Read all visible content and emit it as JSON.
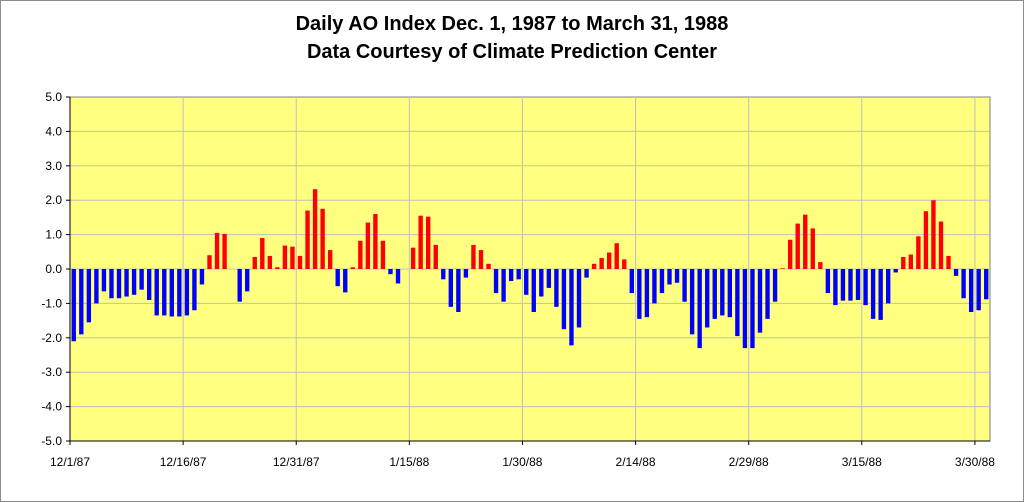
{
  "chart_data": {
    "type": "bar",
    "title": "Daily AO Index Dec. 1, 1987 to March 31, 1988",
    "subtitle": "Data Courtesy of Climate Prediction Center",
    "xlabel": "",
    "ylabel": "",
    "ylim": [
      -5.0,
      5.0
    ],
    "y_ticks": [
      "5.0",
      "4.0",
      "3.0",
      "2.0",
      "1.0",
      "0.0",
      "-1.0",
      "-2.0",
      "-3.0",
      "-4.0",
      "-5.0"
    ],
    "x_tick_labels": [
      {
        "label": "12/1/87",
        "day_index": 0
      },
      {
        "label": "12/16/87",
        "day_index": 15
      },
      {
        "label": "12/31/87",
        "day_index": 30
      },
      {
        "label": "1/15/88",
        "day_index": 45
      },
      {
        "label": "1/30/88",
        "day_index": 60
      },
      {
        "label": "2/14/88",
        "day_index": 75
      },
      {
        "label": "2/29/88",
        "day_index": 90
      },
      {
        "label": "3/15/88",
        "day_index": 105
      },
      {
        "label": "3/30/88",
        "day_index": 120
      }
    ],
    "grid": true,
    "colors": {
      "positive": "#ff0000",
      "negative": "#0000ff",
      "plot_background": "#ffff80",
      "gridline": "#c0c0c0"
    },
    "series": [
      {
        "name": "Daily AO Index",
        "start_date": "12/1/87",
        "values": [
          -2.1,
          -1.9,
          -1.55,
          -1.0,
          -0.65,
          -0.85,
          -0.85,
          -0.8,
          -0.75,
          -0.6,
          -0.9,
          -1.35,
          -1.35,
          -1.38,
          -1.38,
          -1.35,
          -1.2,
          -0.45,
          0.4,
          1.05,
          1.02,
          0.0,
          -0.95,
          -0.65,
          0.35,
          0.9,
          0.38,
          0.05,
          0.68,
          0.65,
          0.38,
          1.7,
          2.32,
          1.75,
          0.55,
          -0.5,
          -0.68,
          0.05,
          0.82,
          1.35,
          1.6,
          0.82,
          -0.15,
          -0.42,
          0.0,
          0.62,
          1.55,
          1.52,
          0.7,
          -0.3,
          -1.1,
          -1.25,
          -0.25,
          0.7,
          0.55,
          0.15,
          -0.7,
          -0.95,
          -0.35,
          -0.3,
          -0.75,
          -1.25,
          -0.8,
          -0.55,
          -1.1,
          -1.75,
          -2.22,
          -1.7,
          -0.25,
          0.15,
          0.32,
          0.48,
          0.75,
          0.28,
          -0.7,
          -1.45,
          -1.4,
          -1.0,
          -0.7,
          -0.45,
          -0.4,
          -0.95,
          -1.9,
          -2.3,
          -1.7,
          -1.45,
          -1.35,
          -1.4,
          -1.95,
          -2.3,
          -2.3,
          -1.85,
          -1.45,
          -0.95,
          0.02,
          0.85,
          1.32,
          1.58,
          1.18,
          0.2,
          -0.7,
          -1.05,
          -0.92,
          -0.92,
          -0.9,
          -1.05,
          -1.45,
          -1.48,
          -1.0,
          -0.1,
          0.35,
          0.42,
          0.95,
          1.68,
          2.0,
          1.38,
          0.38,
          -0.2,
          -0.85,
          -1.25,
          -1.2,
          -0.88
        ]
      }
    ]
  }
}
